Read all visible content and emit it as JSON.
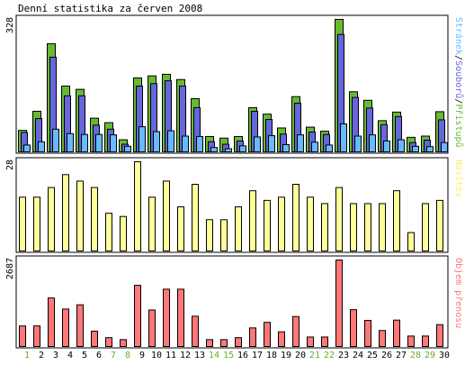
{
  "chart_data": {
    "title": "Denní statistika za červen 2008",
    "days": [
      "1",
      "2",
      "3",
      "4",
      "5",
      "6",
      "7",
      "8",
      "9",
      "10",
      "11",
      "12",
      "13",
      "14",
      "15",
      "16",
      "17",
      "18",
      "19",
      "20",
      "21",
      "22",
      "23",
      "24",
      "25",
      "26",
      "27",
      "28",
      "29",
      "30"
    ],
    "weekend_days": [
      "1",
      "7",
      "8",
      "14",
      "15",
      "21",
      "22",
      "28",
      "29"
    ],
    "colors": {
      "frame": "#000000",
      "day_label": "#000000",
      "weekend_label": "#66aa33",
      "pristupy": "#66bb33",
      "soubory": "#6666dd",
      "stranky": "#66bbff",
      "navstevy": "#ffff99",
      "objem": "#ff7777"
    },
    "panels": [
      {
        "type": "bar",
        "name": "top",
        "ymax_label": "328",
        "ymax": 328,
        "side_label_parts": [
          {
            "text": "Stránek",
            "color": "#66bbff"
          },
          {
            "text": "/",
            "color": "#000000"
          },
          {
            "text": "Souborů",
            "color": "#6666dd"
          },
          {
            "text": "/",
            "color": "#000000"
          },
          {
            "text": "Přístupů",
            "color": "#66bb33"
          }
        ],
        "series": [
          {
            "key": "pristupy",
            "values": [
              55,
              102,
              268,
              164,
              156,
              85,
              74,
              32,
              184,
              189,
              193,
              180,
              133,
              40,
              36,
              40,
              111,
              95,
              61,
              138,
              63,
              53,
              328,
              150,
              129,
              79,
              100,
              38,
              41,
              101
            ]
          },
          {
            "key": "soubory",
            "values": [
              50,
              84,
              235,
              140,
              140,
              68,
              58,
              21,
              164,
              170,
              177,
              164,
              111,
              27,
              21,
              29,
              102,
              82,
              46,
              122,
              51,
              45,
              291,
              136,
              110,
              69,
              89,
              25,
              31,
              81
            ]
          },
          {
            "key": "stranky",
            "values": [
              19,
              27,
              58,
              47,
              45,
              45,
              44,
              16,
              64,
              52,
              54,
              41,
              40,
              13,
              10,
              17,
              39,
              42,
              20,
              44,
              26,
              19,
              71,
              41,
              44,
              29,
              32,
              16,
              15,
              25
            ]
          }
        ]
      },
      {
        "type": "bar",
        "name": "middle",
        "ymax_label": "28",
        "ymax": 28,
        "side_label_parts": [
          {
            "text": "Návštěv",
            "color": "#ffee66"
          }
        ],
        "series": [
          {
            "key": "navstevy",
            "values": [
              17,
              17,
              20,
              24,
              22,
              20,
              12,
              11,
              28,
              17,
              22,
              14,
              21,
              10,
              10,
              14,
              19,
              16,
              17,
              21,
              17,
              15,
              20,
              15,
              15,
              15,
              19,
              6,
              15,
              16
            ]
          }
        ]
      },
      {
        "type": "bar",
        "name": "bottom",
        "ymax_label": "2687",
        "ymax": 2687,
        "side_label_parts": [
          {
            "text": "Objem přenosu",
            "color": "#ff7777"
          }
        ],
        "series": [
          {
            "key": "objem",
            "values": [
              660,
              660,
              1520,
              1180,
              1310,
              500,
              300,
              240,
              1910,
              1150,
              1790,
              1790,
              960,
              240,
              240,
              300,
              600,
              770,
              480,
              950,
              320,
              320,
              2687,
              1160,
              830,
              520,
              840,
              350,
              350,
              700
            ]
          }
        ]
      }
    ]
  }
}
